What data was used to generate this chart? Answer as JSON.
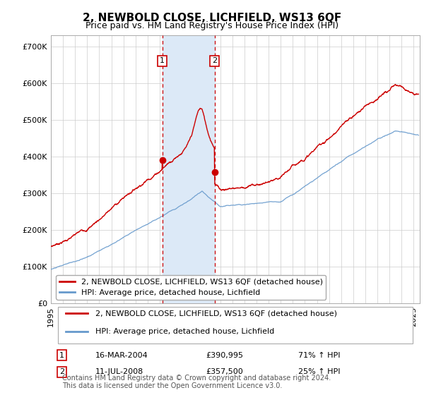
{
  "title": "2, NEWBOLD CLOSE, LICHFIELD, WS13 6QF",
  "subtitle": "Price paid vs. HM Land Registry's House Price Index (HPI)",
  "hpi_label": "HPI: Average price, detached house, Lichfield",
  "property_label": "2, NEWBOLD CLOSE, LICHFIELD, WS13 6QF (detached house)",
  "ylabel_ticks": [
    "£0",
    "£100K",
    "£200K",
    "£300K",
    "£400K",
    "£500K",
    "£600K",
    "£700K"
  ],
  "ytick_vals": [
    0,
    100000,
    200000,
    300000,
    400000,
    500000,
    600000,
    700000
  ],
  "ylim": [
    0,
    730000
  ],
  "xlim_start": 1995.0,
  "xlim_end": 2025.5,
  "transaction1": {
    "date_label": "16-MAR-2004",
    "price": 390995,
    "hpi_pct": "71%",
    "year": 2004.21
  },
  "transaction2": {
    "date_label": "11-JUL-2008",
    "price": 357500,
    "hpi_pct": "25%",
    "year": 2008.54
  },
  "shade_color": "#dce9f7",
  "red_line_color": "#cc0000",
  "blue_line_color": "#6699cc",
  "dashed_line_color": "#cc0000",
  "grid_color": "#cccccc",
  "footnote": "Contains HM Land Registry data © Crown copyright and database right 2024.\nThis data is licensed under the Open Government Licence v3.0.",
  "title_fontsize": 11,
  "subtitle_fontsize": 9,
  "tick_fontsize": 8,
  "legend_fontsize": 8,
  "table_fontsize": 8,
  "footnote_fontsize": 7
}
